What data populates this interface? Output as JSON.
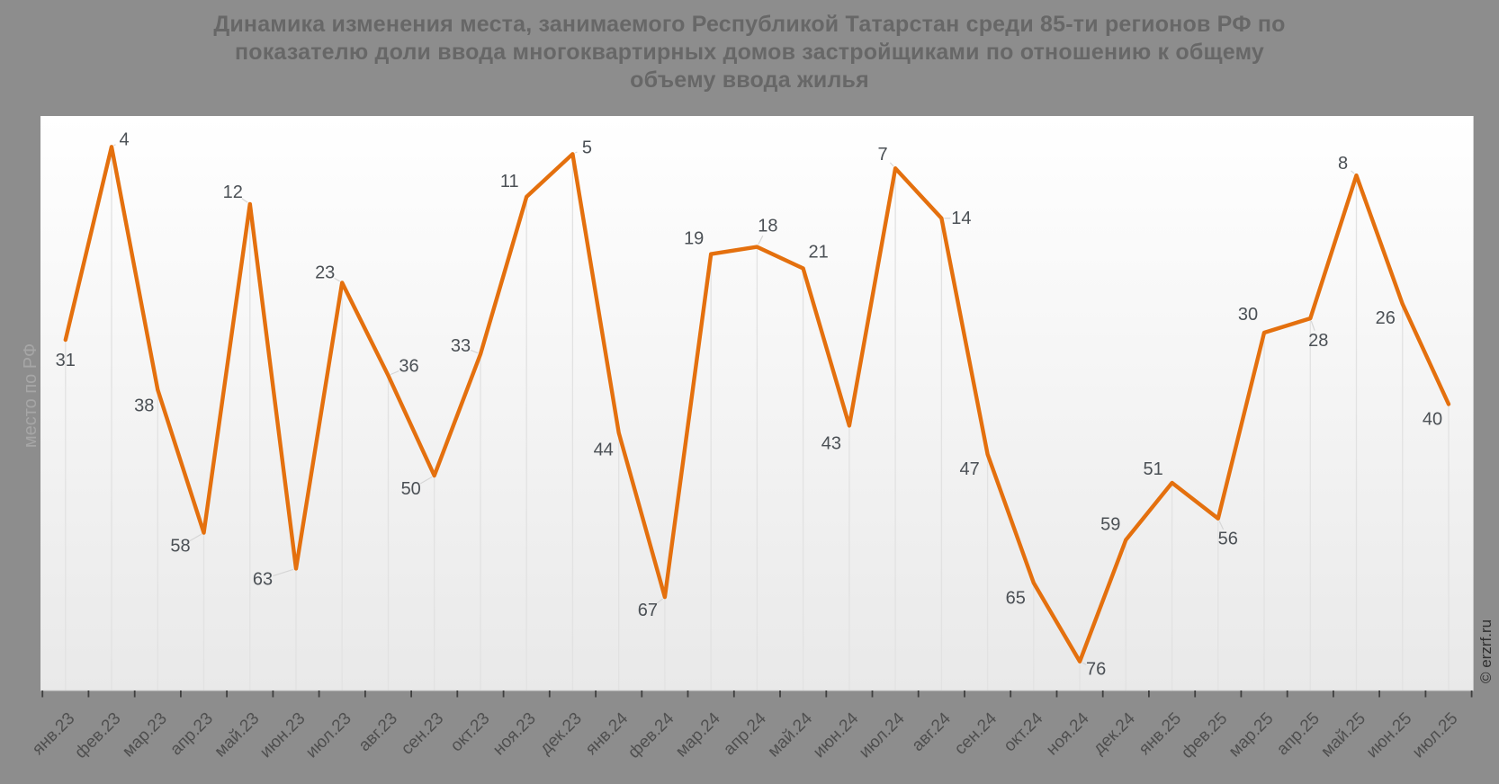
{
  "page": {
    "background_color": "#8d8d8d"
  },
  "chart_data": {
    "type": "line",
    "title": "Динамика изменения места, занимаемого Республикой Татарстан среди 85-ти регионов РФ по показателю доли ввода многоквартирных домов застройщиками по отношению к общему объему ввода жилья",
    "title_lines": [
      "Динамика изменения места, занимаемого Республикой Татарстан среди 85-ти регионов РФ по",
      "показателю доли ввода многоквартирных домов застройщиками по отношению к общему",
      "объему ввода жилья"
    ],
    "ylabel": "место по РФ",
    "xlabel": "",
    "watermark": "© erzrf.ru",
    "categories": [
      "янв.23",
      "фев.23",
      "мар.23",
      "апр.23",
      "май.23",
      "июн.23",
      "июл.23",
      "авг.23",
      "сен.23",
      "окт.23",
      "ноя.23",
      "дек.23",
      "янв.24",
      "фев.24",
      "мар.24",
      "апр.24",
      "май.24",
      "июн.24",
      "июл.24",
      "авг.24",
      "сен.24",
      "окт.24",
      "ноя.24",
      "дек.24",
      "янв.25",
      "фев.25",
      "мар.25",
      "апр.25",
      "май.25",
      "июн.25",
      "июл.25"
    ],
    "values": [
      31,
      4,
      38,
      58,
      12,
      63,
      23,
      36,
      50,
      33,
      11,
      5,
      44,
      67,
      19,
      18,
      21,
      43,
      7,
      14,
      47,
      65,
      76,
      59,
      51,
      56,
      30,
      28,
      8,
      26,
      40
    ],
    "y_axis": {
      "inverted": true,
      "min": 0,
      "max": 80,
      "tick_labels_visible": false
    },
    "x_axis": {
      "labels_rotation": -45,
      "ticks": "between-categories"
    },
    "grid": "vertical-droplines-per-point",
    "legend": "none",
    "data_labels_visible": true,
    "label_layout": [
      [
        0,
        23,
        0
      ],
      [
        14,
        -8,
        1
      ],
      [
        -15,
        18,
        0
      ],
      [
        -26,
        15,
        1
      ],
      [
        -19,
        -13,
        1
      ],
      [
        -37,
        12,
        1
      ],
      [
        -19,
        -11,
        1
      ],
      [
        23,
        -10,
        1
      ],
      [
        -26,
        15,
        1
      ],
      [
        -22,
        -9,
        1
      ],
      [
        -19,
        -17,
        0
      ],
      [
        16,
        -7,
        1
      ],
      [
        -17,
        19,
        0
      ],
      [
        -19,
        15,
        1
      ],
      [
        -19,
        -17,
        0
      ],
      [
        12,
        -23,
        1
      ],
      [
        17,
        -18,
        0
      ],
      [
        -20,
        20,
        0
      ],
      [
        -14,
        -15,
        1
      ],
      [
        22,
        0,
        1
      ],
      [
        -20,
        17,
        0
      ],
      [
        -20,
        17,
        0
      ],
      [
        18,
        9,
        1
      ],
      [
        -17,
        -17,
        0
      ],
      [
        -21,
        -15,
        0
      ],
      [
        11,
        23,
        1
      ],
      [
        -18,
        -20,
        0
      ],
      [
        9,
        25,
        1
      ],
      [
        -15,
        -13,
        1
      ],
      [
        -19,
        16,
        0
      ],
      [
        -18,
        17,
        0
      ]
    ],
    "colors": {
      "line": "#e4700e",
      "data_label": "#4b5055",
      "title": "#676767",
      "x_label": "#4f4f4f",
      "y_label": "#a6a6a6",
      "watermark": "#2f2f2f",
      "background": "#8d8d8d",
      "plot_top": "#ffffff",
      "plot_bottom": "#e9e9e9",
      "dropline": "#e2e2e2",
      "connector": "#d6d6d6",
      "tick": "#3f3f3f",
      "axis_line": "#d2d2d2"
    }
  }
}
